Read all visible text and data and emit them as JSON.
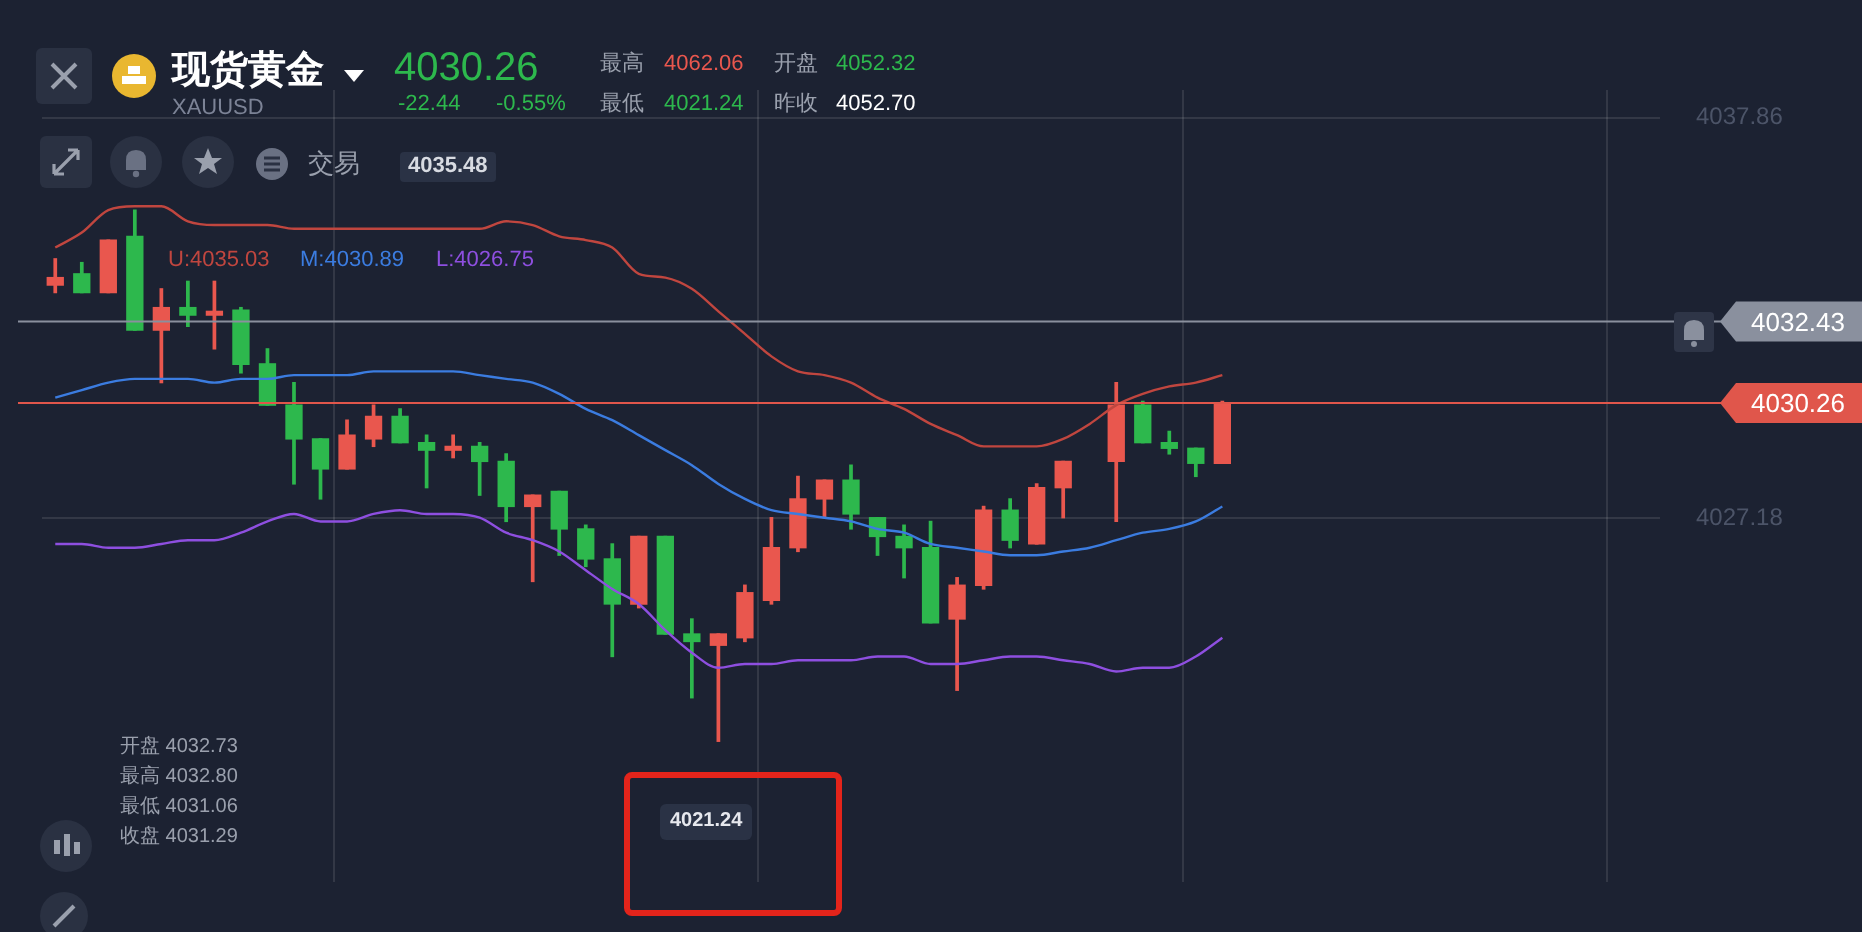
{
  "chart_data": {
    "type": "candlestick",
    "title": "现货黄金",
    "subtitle": "XAUUSD",
    "categories": [
      null,
      null,
      null,
      null,
      null,
      null,
      null,
      null,
      null,
      null,
      null,
      null,
      null,
      null,
      null,
      null,
      null,
      null,
      null,
      null,
      null,
      null,
      null,
      null,
      null,
      null,
      null,
      null,
      null,
      null,
      null,
      null,
      null,
      null,
      null,
      null,
      null,
      null,
      null,
      null,
      null,
      null,
      null,
      null,
      null,
      null,
      null,
      null,
      null,
      null,
      null,
      null,
      null,
      null,
      null,
      null,
      null,
      null,
      null,
      null,
      null
    ],
    "ohlc": [
      [
        4033.4,
        4034.1,
        4033.2,
        4033.6
      ],
      [
        4033.7,
        4034.0,
        4033.2,
        4033.2
      ],
      [
        4033.2,
        4034.6,
        4033.2,
        4034.6
      ],
      [
        4034.7,
        4035.4,
        4032.2,
        4032.2
      ],
      [
        4032.2,
        4033.3,
        4030.8,
        4032.8
      ],
      [
        4032.8,
        4033.5,
        4032.3,
        4032.6
      ],
      [
        4032.6,
        4033.5,
        4031.7,
        4032.7
      ],
      [
        4032.73,
        4032.8,
        4031.06,
        4031.29
      ],
      [
        4031.3,
        4031.7,
        4030.2,
        4030.2
      ],
      [
        4030.2,
        4030.8,
        4028.1,
        4029.3
      ],
      [
        4029.3,
        4029.3,
        4027.7,
        4028.5
      ],
      [
        4028.5,
        4029.8,
        4028.5,
        4029.4
      ],
      [
        4029.3,
        4030.2,
        4029.1,
        4029.9
      ],
      [
        4029.9,
        4030.1,
        4029.2,
        4029.2
      ],
      [
        4029.2,
        4029.4,
        4028.0,
        4029.0
      ],
      [
        4029.0,
        4029.4,
        4028.8,
        4029.1
      ],
      [
        4029.1,
        4029.2,
        4027.8,
        4028.7
      ],
      [
        4028.7,
        4028.9,
        4027.1,
        4027.5
      ],
      [
        4027.5,
        4027.8,
        4025.5,
        4027.8
      ],
      [
        4027.9,
        4027.9,
        4026.2,
        4026.9
      ],
      [
        4026.9,
        4027.0,
        4025.9,
        4026.1
      ],
      [
        4026.1,
        4026.5,
        4023.5,
        4024.9
      ],
      [
        4024.9,
        4026.7,
        4024.8,
        4026.7
      ],
      [
        4026.7,
        4026.7,
        4024.1,
        4024.1
      ],
      [
        4024.1,
        4024.5,
        4022.4,
        4023.9
      ],
      [
        4023.8,
        4024.1,
        4021.24,
        4024.1
      ],
      [
        4024.0,
        4025.4,
        4023.9,
        4025.2
      ],
      [
        4025.0,
        4027.2,
        4024.9,
        4026.4
      ],
      [
        4026.4,
        4028.3,
        4026.3,
        4027.7
      ],
      [
        4027.7,
        4028.2,
        4027.2,
        4028.2
      ],
      [
        4028.2,
        4028.6,
        4026.9,
        4027.3
      ],
      [
        4027.2,
        4027.2,
        4026.2,
        4026.7
      ],
      [
        4026.7,
        4027.0,
        4025.6,
        4026.4
      ],
      [
        4026.4,
        4027.1,
        4024.4,
        4024.4
      ],
      [
        4024.5,
        4025.6,
        4022.6,
        4025.4
      ],
      [
        4025.4,
        4027.5,
        4025.3,
        4027.4
      ],
      [
        4027.4,
        4027.7,
        4026.4,
        4026.6
      ],
      [
        4026.5,
        4028.1,
        4026.5,
        4028.0
      ],
      [
        4028.0,
        4028.7,
        4027.2,
        4028.7
      ],
      null,
      [
        4028.7,
        4030.8,
        4027.1,
        4030.2
      ],
      [
        4030.2,
        4030.3,
        4029.2,
        4029.2
      ],
      [
        4029.2,
        4029.5,
        4028.9,
        4029.05
      ],
      [
        4029.05,
        4029.05,
        4028.3,
        4028.65
      ],
      [
        4028.65,
        4030.3,
        4028.65,
        4030.26
      ],
      null,
      null,
      null,
      null,
      null,
      null,
      null,
      null,
      null,
      null,
      null,
      null,
      null,
      null,
      null,
      null
    ],
    "colors": [
      "#e9574e",
      "#2db84d",
      "#e9574e",
      "#2db84d",
      "#e9574e",
      "#2db84d",
      "#e9574e",
      "#2db84d",
      "#2db84d",
      "#2db84d",
      "#2db84d",
      "#e9574e",
      "#e9574e",
      "#2db84d",
      "#2db84d",
      "#e9574e",
      "#2db84d",
      "#2db84d",
      "#e9574e",
      "#2db84d",
      "#2db84d",
      "#2db84d",
      "#e9574e",
      "#2db84d",
      "#2db84d",
      "#e9574e",
      "#e9574e",
      "#e9574e",
      "#e9574e",
      "#e9574e",
      "#2db84d",
      "#2db84d",
      "#2db84d",
      "#2db84d",
      "#e9574e",
      "#e9574e",
      "#2db84d",
      "#e9574e",
      "#e9574e",
      null,
      "#e9574e",
      "#2db84d",
      "#2db84d",
      "#2db84d",
      "#e9574e",
      null,
      null,
      null,
      null,
      null,
      null,
      null,
      null,
      null,
      null,
      null,
      null,
      null,
      null,
      null,
      null
    ],
    "series": [
      {
        "type": "line",
        "color": "#c0463f",
        "values": [
          4034.4,
          4034.8,
          4035.4,
          4035.5,
          4035.5,
          4035.1,
          4035.0,
          4035.0,
          4035.0,
          4034.9,
          4034.9,
          4034.9,
          4034.9,
          4034.9,
          4034.9,
          4034.9,
          4034.9,
          4035.1,
          4035.0,
          4034.7,
          4034.6,
          4034.4,
          4033.7,
          4033.6,
          4033.3,
          4032.7,
          4032.1,
          4031.5,
          4031.1,
          4031.0,
          4030.8,
          4030.4,
          4030.1,
          4029.7,
          4029.4,
          4029.1,
          4029.1,
          4029.1,
          4029.3,
          4029.7,
          4030.2,
          4030.5,
          4030.7,
          4030.8,
          4031.0,
          null,
          null,
          null,
          null,
          null,
          null,
          null,
          null,
          null,
          null,
          null,
          null,
          null,
          null,
          null,
          null
        ]
      },
      {
        "type": "line",
        "color": "#3b7ce0",
        "values": [
          4030.4,
          4030.6,
          4030.8,
          4030.9,
          4030.9,
          4030.9,
          4030.8,
          4030.9,
          4030.9,
          4031.0,
          4031.0,
          4031.0,
          4031.1,
          4031.1,
          4031.1,
          4031.1,
          4031.0,
          4030.9,
          4030.8,
          4030.5,
          4030.1,
          4029.8,
          4029.4,
          4029.0,
          4028.6,
          4028.1,
          4027.7,
          4027.4,
          4027.3,
          4027.2,
          4027.1,
          4026.9,
          4026.8,
          4026.5,
          4026.4,
          4026.3,
          4026.2,
          4026.2,
          4026.3,
          4026.4,
          4026.6,
          4026.8,
          4026.9,
          4027.1,
          4027.5,
          null,
          null,
          null,
          null,
          null,
          null,
          null,
          null,
          null,
          null,
          null,
          null,
          null,
          null,
          null,
          null
        ]
      },
      {
        "type": "line",
        "color": "#8e4fe0",
        "values": [
          4026.5,
          4026.5,
          4026.4,
          4026.4,
          4026.5,
          4026.6,
          4026.6,
          4026.8,
          4027.1,
          4027.3,
          4027.1,
          4027.1,
          4027.3,
          4027.4,
          4027.3,
          4027.3,
          4027.2,
          4026.8,
          4026.6,
          4026.3,
          4025.8,
          4025.3,
          4024.9,
          4024.2,
          4023.6,
          4023.2,
          4023.3,
          4023.3,
          4023.4,
          4023.4,
          4023.4,
          4023.5,
          4023.5,
          4023.3,
          4023.3,
          4023.4,
          4023.5,
          4023.5,
          4023.4,
          4023.3,
          4023.1,
          4023.2,
          4023.2,
          4023.5,
          4024.0,
          null,
          null,
          null,
          null,
          null,
          null,
          null,
          null,
          null,
          null,
          null,
          null,
          null,
          null,
          null,
          null
        ]
      }
    ],
    "ylim": [
      4017.5,
      4038.6
    ],
    "yticks": [
      4027.18,
      4037.86
    ],
    "tick_labels": "y",
    "grid": true,
    "legend": false,
    "ref_lines": [
      {
        "axis": "y",
        "value": 4032.43,
        "label": "4032.43",
        "color": "#8a909e"
      },
      {
        "axis": "y",
        "value": 4030.26,
        "label": "4030.26",
        "color": "#e0564b"
      }
    ],
    "annotations": [
      "4030.26",
      "-22.44",
      "-0.55%",
      "最高",
      "4062.06",
      "开盘",
      "4052.32",
      "最低",
      "4021.24",
      "昨收",
      "4052.70",
      "交易",
      "4035.48",
      "U:4035.03",
      "M:4030.89",
      "L:4026.75",
      "开盘 4032.73",
      "最高 4032.80",
      "最低 4031.06",
      "收盘 4031.29",
      "4021.24"
    ]
  }
}
